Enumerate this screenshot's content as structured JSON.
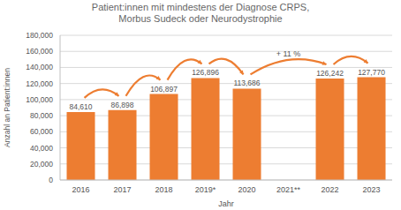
{
  "chart_data": {
    "type": "bar",
    "title": "Patient:innen mit mindestens der Diagnose CRPS, Morbus Sudeck oder Neurodystrophie",
    "x_label": "Jahr",
    "y_label": "Anzahl an Patient:innen",
    "categories": [
      "2016",
      "2017",
      "2018",
      "2019*",
      "2020",
      "2021**",
      "2022",
      "2023"
    ],
    "values": [
      84610,
      86898,
      106897,
      126896,
      113686,
      null,
      126242,
      127770
    ],
    "value_labels": [
      "84,610",
      "86,898",
      "106,897",
      "126,896",
      "113,686",
      null,
      "126,242",
      "127,770"
    ],
    "color": "#ed7d31",
    "ylim": [
      0,
      180000
    ],
    "yticks": [
      0,
      {
        "value": 20000,
        "label": "20,000"
      },
      {
        "value": 40000,
        "label": "40,000"
      },
      {
        "value": 60000,
        "label": "60,000"
      },
      {
        "value": 80000,
        "label": "80,000"
      },
      {
        "value": 100000,
        "label": "100,000"
      },
      {
        "value": 120000,
        "label": "120,000"
      },
      {
        "value": 140000,
        "label": "140,000"
      },
      {
        "value": 160000,
        "label": "160,000"
      },
      {
        "value": 180000,
        "label": "180,000"
      }
    ],
    "grid": true,
    "data_labels": true,
    "annotations": [
      {
        "text": "+ 11 %"
      }
    ]
  }
}
